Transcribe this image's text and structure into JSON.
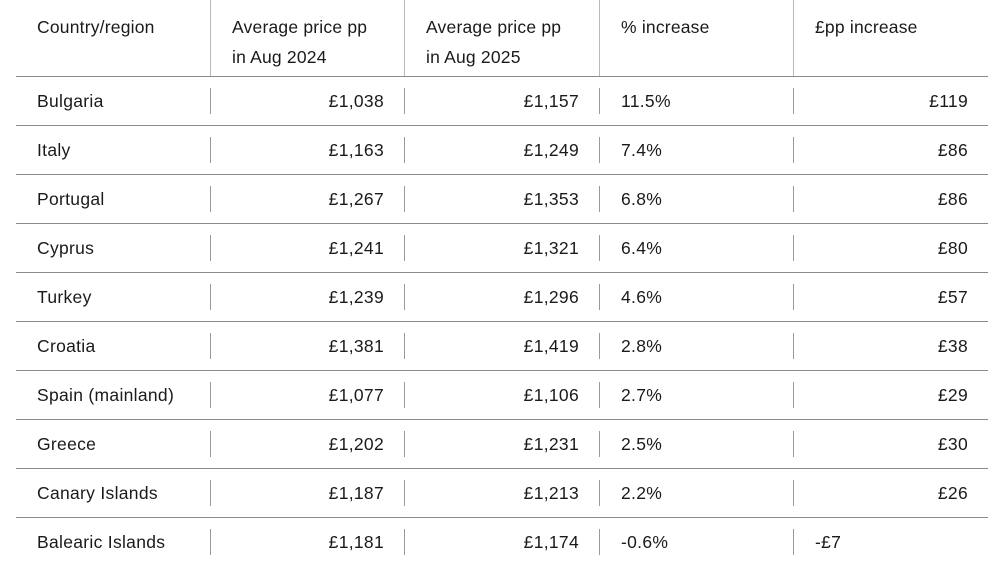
{
  "table": {
    "headers": [
      [
        "Country/region"
      ],
      [
        "Average price pp",
        "in Aug 2024"
      ],
      [
        "Average price pp",
        "in Aug 2025"
      ],
      [
        "% increase"
      ],
      [
        "£pp increase"
      ]
    ],
    "rows": [
      {
        "country": "Bulgaria",
        "price_2024": "£1,038",
        "price_2025": "£1,157",
        "pct_increase": "11.5%",
        "pp_increase": "£119"
      },
      {
        "country": "Italy",
        "price_2024": "£1,163",
        "price_2025": "£1,249",
        "pct_increase": "7.4%",
        "pp_increase": "£86"
      },
      {
        "country": "Portugal",
        "price_2024": "£1,267",
        "price_2025": "£1,353",
        "pct_increase": "6.8%",
        "pp_increase": "£86"
      },
      {
        "country": "Cyprus",
        "price_2024": "£1,241",
        "price_2025": "£1,321",
        "pct_increase": "6.4%",
        "pp_increase": "£80"
      },
      {
        "country": "Turkey",
        "price_2024": "£1,239",
        "price_2025": "£1,296",
        "pct_increase": "4.6%",
        "pp_increase": "£57"
      },
      {
        "country": "Croatia",
        "price_2024": "£1,381",
        "price_2025": "£1,419",
        "pct_increase": "2.8%",
        "pp_increase": "£38"
      },
      {
        "country": "Spain (mainland)",
        "price_2024": "£1,077",
        "price_2025": "£1,106",
        "pct_increase": "2.7%",
        "pp_increase": "£29"
      },
      {
        "country": "Greece",
        "price_2024": "£1,202",
        "price_2025": "£1,231",
        "pct_increase": "2.5%",
        "pp_increase": "£30"
      },
      {
        "country": "Canary Islands",
        "price_2024": "£1,187",
        "price_2025": "£1,213",
        "pct_increase": "2.2%",
        "pp_increase": "£26"
      },
      {
        "country": "Balearic Islands",
        "price_2024": "£1,181",
        "price_2025": "£1,174",
        "pct_increase": "-0.6%",
        "pp_increase": "-£7"
      }
    ]
  }
}
